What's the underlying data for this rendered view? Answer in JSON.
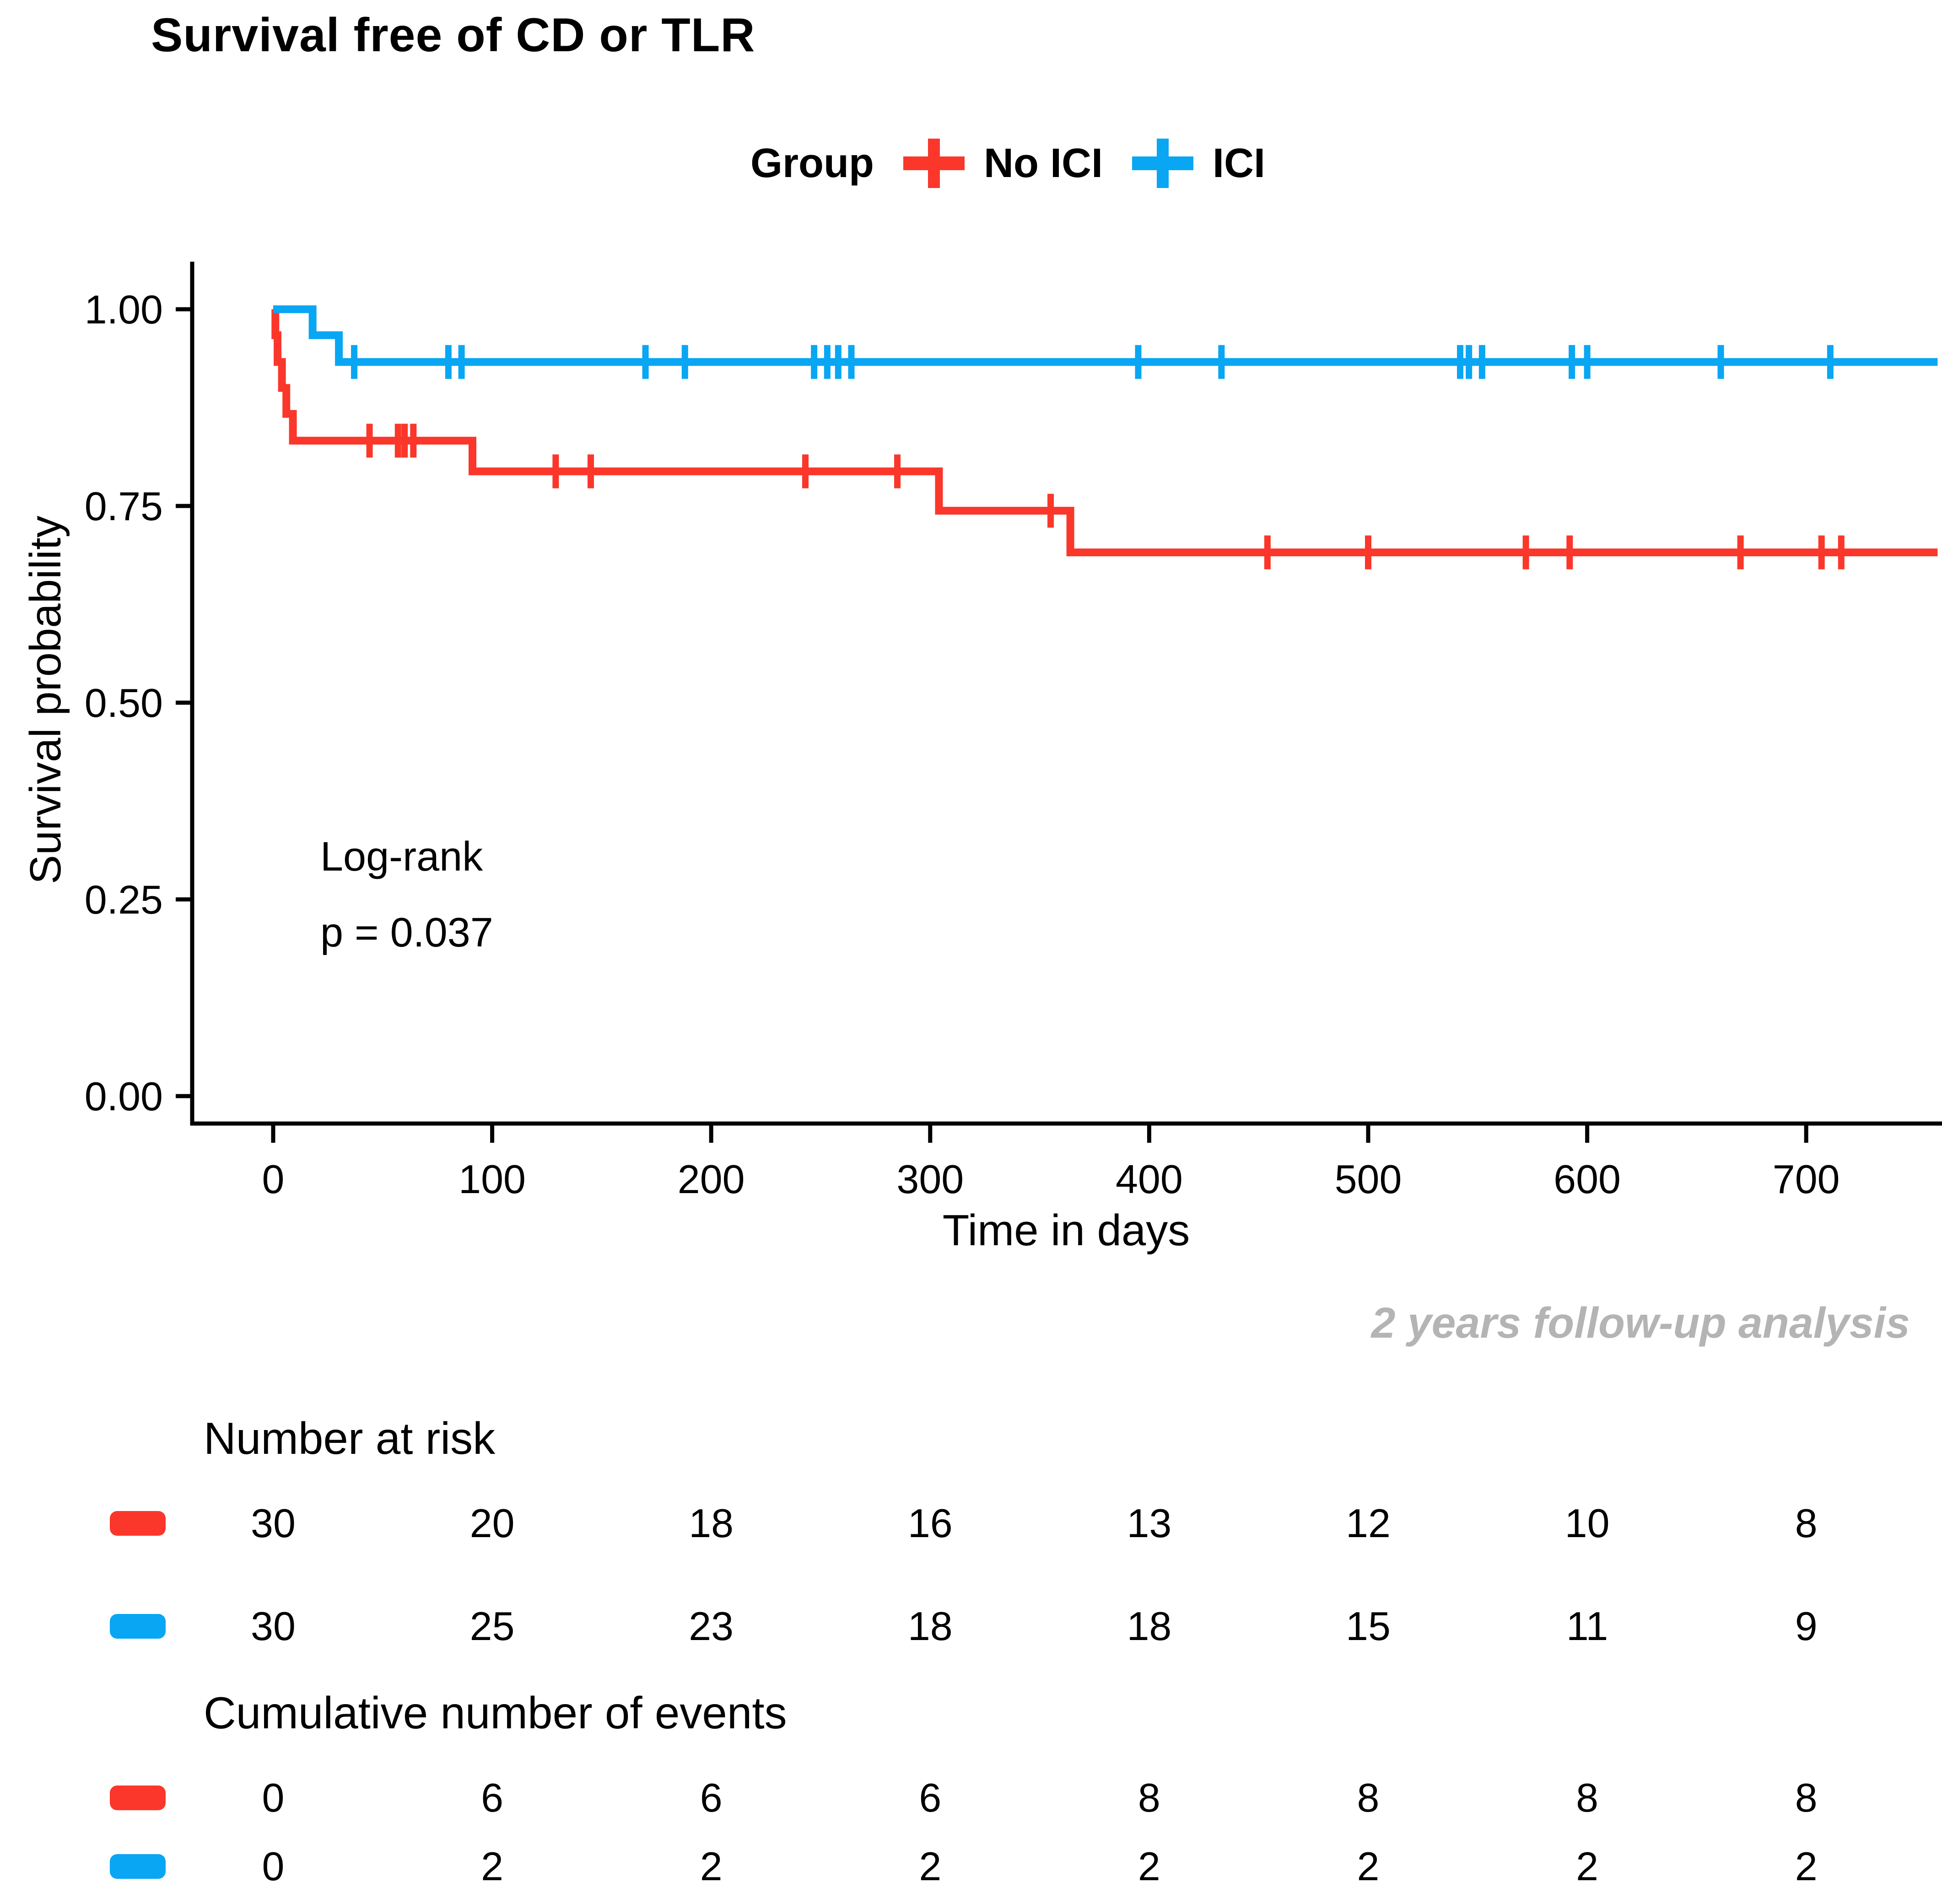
{
  "figure": {
    "title": "Survival free of CD or TLR",
    "footnote": "2 years follow-up analysis",
    "annotation_lines": [
      "Log-rank",
      "p = 0.037"
    ]
  },
  "legend": {
    "label": "Group",
    "items": [
      {
        "label": "No ICI",
        "color": "#fa372a"
      },
      {
        "label": "ICI",
        "color": "#09a6f3"
      }
    ]
  },
  "chart_data": {
    "type": "line",
    "subtype": "kaplan-meier-step-curve",
    "title": "Survival free of CD or TLR",
    "xlabel": "Time in days",
    "ylabel": "Survival probability",
    "x_ticks": [
      0,
      100,
      200,
      300,
      400,
      500,
      600,
      700
    ],
    "y_ticks": [
      {
        "value": 1.0,
        "label": "1.00"
      },
      {
        "value": 0.75,
        "label": "0.75"
      },
      {
        "value": 0.5,
        "label": "0.50"
      },
      {
        "value": 0.25,
        "label": "0.25"
      },
      {
        "value": 0.0,
        "label": "0.00"
      }
    ],
    "xlim": [
      -37,
      762
    ],
    "ylim": [
      0,
      1.06
    ],
    "grid": false,
    "legend_position": "top",
    "log_rank_p": "0.037",
    "annotation": "Log-rank p = 0.037",
    "series": [
      {
        "name": "No ICI",
        "color": "#fa372a",
        "steps": [
          [
            0,
            1.0
          ],
          [
            1,
            0.967
          ],
          [
            2,
            0.933
          ],
          [
            4,
            0.9
          ],
          [
            6,
            0.867
          ],
          [
            9,
            0.833
          ],
          [
            91,
            0.794
          ],
          [
            304,
            0.744
          ],
          [
            364,
            0.691
          ],
          [
            760,
            0.691
          ]
        ],
        "censor_marks": [
          [
            44,
            0.833
          ],
          [
            57,
            0.833
          ],
          [
            60,
            0.833
          ],
          [
            64,
            0.833
          ],
          [
            129,
            0.794
          ],
          [
            145,
            0.794
          ],
          [
            243,
            0.794
          ],
          [
            285,
            0.794
          ],
          [
            355,
            0.744
          ],
          [
            454,
            0.691
          ],
          [
            500,
            0.691
          ],
          [
            572,
            0.691
          ],
          [
            592,
            0.691
          ],
          [
            670,
            0.691
          ],
          [
            707,
            0.691
          ],
          [
            716,
            0.691
          ]
        ]
      },
      {
        "name": "ICI",
        "color": "#09a6f3",
        "steps": [
          [
            0,
            1.0
          ],
          [
            18,
            0.967
          ],
          [
            30,
            0.933
          ],
          [
            760,
            0.933
          ]
        ],
        "censor_marks": [
          [
            37,
            0.933
          ],
          [
            80,
            0.933
          ],
          [
            86,
            0.933
          ],
          [
            170,
            0.933
          ],
          [
            188,
            0.933
          ],
          [
            247,
            0.933
          ],
          [
            253,
            0.933
          ],
          [
            258,
            0.933
          ],
          [
            264,
            0.933
          ],
          [
            395,
            0.933
          ],
          [
            433,
            0.933
          ],
          [
            542,
            0.933
          ],
          [
            546,
            0.933
          ],
          [
            552,
            0.933
          ],
          [
            593,
            0.933
          ],
          [
            600,
            0.933
          ],
          [
            661,
            0.933
          ],
          [
            711,
            0.933
          ]
        ]
      }
    ]
  },
  "risk_table": {
    "heading": "Number at risk",
    "columns": [
      0,
      100,
      200,
      300,
      400,
      500,
      600,
      700
    ],
    "rows": [
      {
        "group": "No ICI",
        "color": "#fa372a",
        "values": [
          "30",
          "20",
          "18",
          "16",
          "13",
          "12",
          "10",
          "8"
        ]
      },
      {
        "group": "ICI",
        "color": "#09a6f3",
        "values": [
          "30",
          "25",
          "23",
          "18",
          "18",
          "15",
          "11",
          "9"
        ]
      }
    ]
  },
  "events_table": {
    "heading": "Cumulative number of events",
    "rows": [
      {
        "group": "No ICI",
        "color": "#fa372a",
        "values": [
          "0",
          "6",
          "6",
          "6",
          "8",
          "8",
          "8",
          "8"
        ]
      },
      {
        "group": "ICI",
        "color": "#09a6f3",
        "values": [
          "0",
          "2",
          "2",
          "2",
          "2",
          "2",
          "2",
          "2"
        ]
      }
    ]
  }
}
